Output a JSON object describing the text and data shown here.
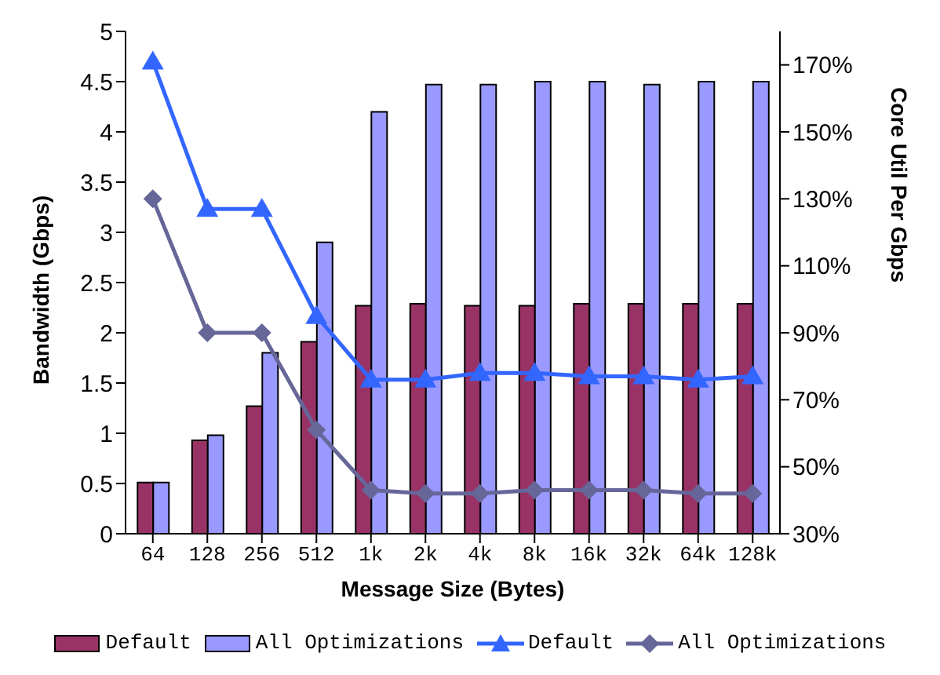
{
  "chart_data": {
    "type": "bar",
    "xlabel": "Message Size (Bytes)",
    "ylabel": "Bandwidth (Gbps)",
    "y2label": "Core Util Per Gbps",
    "categories": [
      "64",
      "128",
      "256",
      "512",
      "1k",
      "2k",
      "4k",
      "8k",
      "16k",
      "32k",
      "64k",
      "128k"
    ],
    "series": [
      {
        "name": "Default",
        "color": "#993366",
        "values": [
          0.51,
          0.93,
          1.27,
          1.91,
          2.27,
          2.29,
          2.27,
          2.27,
          2.29,
          2.29,
          2.29,
          2.29
        ]
      },
      {
        "name": "All Optimizations",
        "color": "#9999ff",
        "values": [
          0.51,
          0.98,
          1.8,
          2.9,
          4.2,
          4.47,
          4.47,
          4.5,
          4.5,
          4.47,
          4.5,
          4.5
        ]
      },
      {
        "name": "Default",
        "type": "line",
        "axis": "y2",
        "marker": "triangle",
        "color": "#3366ff",
        "values": [
          171,
          127,
          127,
          95,
          76,
          76,
          78,
          78,
          77,
          77,
          76,
          77
        ]
      },
      {
        "name": "All Optimizations",
        "type": "line",
        "axis": "y2",
        "marker": "diamond",
        "color": "#666699",
        "values": [
          130,
          90,
          90,
          61,
          43,
          42,
          42,
          43,
          43,
          43,
          42,
          42
        ]
      }
    ],
    "ylim": [
      0,
      5
    ],
    "yticks": [
      0,
      0.5,
      1,
      1.5,
      2,
      2.5,
      3,
      3.5,
      4,
      4.5,
      5
    ],
    "y2lim": [
      30,
      180
    ],
    "y2ticks": [
      {
        "value": 30,
        "label": "30%"
      },
      {
        "value": 50,
        "label": "50%"
      },
      {
        "value": 70,
        "label": "70%"
      },
      {
        "value": 90,
        "label": "90%"
      },
      {
        "value": 110,
        "label": "110%"
      },
      {
        "value": 130,
        "label": "130%"
      },
      {
        "value": 150,
        "label": "150%"
      },
      {
        "value": 170,
        "label": "170%"
      }
    ],
    "grid": false,
    "legend": "bottom"
  }
}
